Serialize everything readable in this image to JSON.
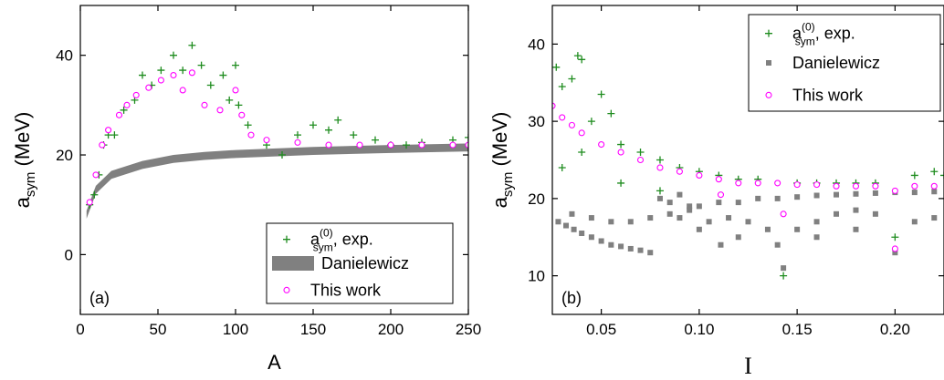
{
  "colors": {
    "exp": "#1e8c1e",
    "danielewicz": "#808080",
    "this_work": "#ff00ff",
    "axis": "#000000"
  },
  "chart_data": [
    {
      "type": "scatter",
      "panel_label": "(a)",
      "xlabel": "A",
      "ylabel_main": "a",
      "ylabel_sub": "sym",
      "ylabel_unit": " (MeV)",
      "xlim": [
        0,
        250
      ],
      "ylim": [
        -12,
        50
      ],
      "xticks": [
        0,
        50,
        100,
        150,
        200,
        250
      ],
      "xtick_labels": [
        "0",
        "50",
        "100",
        "150",
        "200",
        "250"
      ],
      "yticks": [
        0,
        20,
        40
      ],
      "ytick_labels": [
        "0",
        "20",
        "40"
      ],
      "legend": {
        "position": "lower-right",
        "entries": [
          {
            "key": "exp",
            "label_main": "a",
            "label_sub": "sym",
            "label_sup": "(0)",
            "label_rest": ", exp."
          },
          {
            "key": "danielewicz",
            "label": "Danielewicz"
          },
          {
            "key": "this_work",
            "label": "This work"
          }
        ]
      },
      "series": [
        {
          "key": "exp",
          "marker": "plus",
          "points": [
            [
              6,
              10
            ],
            [
              9,
              12
            ],
            [
              12,
              16
            ],
            [
              15,
              22
            ],
            [
              18,
              24
            ],
            [
              22,
              24
            ],
            [
              28,
              29
            ],
            [
              35,
              31
            ],
            [
              40,
              36
            ],
            [
              46,
              34
            ],
            [
              52,
              37
            ],
            [
              60,
              40
            ],
            [
              66,
              37
            ],
            [
              72,
              42
            ],
            [
              78,
              38
            ],
            [
              84,
              34
            ],
            [
              92,
              36
            ],
            [
              96,
              31
            ],
            [
              100,
              38
            ],
            [
              102,
              30
            ],
            [
              108,
              26
            ],
            [
              120,
              22
            ],
            [
              130,
              20
            ],
            [
              140,
              24
            ],
            [
              150,
              26
            ],
            [
              160,
              25
            ],
            [
              166,
              27
            ],
            [
              176,
              24
            ],
            [
              190,
              23
            ],
            [
              200,
              22
            ],
            [
              210,
              22
            ],
            [
              220,
              22.5
            ],
            [
              240,
              23
            ],
            [
              250,
              23.5
            ]
          ]
        },
        {
          "key": "this_work",
          "marker": "circle",
          "points": [
            [
              6,
              10.5
            ],
            [
              10,
              16
            ],
            [
              14,
              22
            ],
            [
              18,
              25
            ],
            [
              25,
              28
            ],
            [
              30,
              30
            ],
            [
              36,
              32
            ],
            [
              44,
              33.5
            ],
            [
              52,
              35
            ],
            [
              60,
              36
            ],
            [
              66,
              33
            ],
            [
              72,
              36.5
            ],
            [
              80,
              30
            ],
            [
              90,
              29
            ],
            [
              100,
              33
            ],
            [
              104,
              28
            ],
            [
              110,
              24
            ],
            [
              120,
              23
            ],
            [
              140,
              22.5
            ],
            [
              160,
              22
            ],
            [
              180,
              22
            ],
            [
              200,
              22
            ],
            [
              220,
              22
            ],
            [
              240,
              22
            ],
            [
              250,
              22
            ]
          ]
        },
        {
          "key": "danielewicz",
          "marker": "band",
          "curve": [
            [
              4,
              8
            ],
            [
              10,
              13
            ],
            [
              20,
              16
            ],
            [
              40,
              18
            ],
            [
              60,
              19.2
            ],
            [
              80,
              19.8
            ],
            [
              100,
              20.2
            ],
            [
              150,
              20.8
            ],
            [
              200,
              21.2
            ],
            [
              250,
              21.5
            ]
          ]
        }
      ]
    },
    {
      "type": "scatter",
      "panel_label": "(b)",
      "xlabel": "I",
      "ylabel_main": "a",
      "ylabel_sub": "sym",
      "ylabel_unit": " (MeV)",
      "xlim": [
        0.025,
        0.225
      ],
      "ylim": [
        5,
        45
      ],
      "xticks": [
        0.05,
        0.1,
        0.15,
        0.2
      ],
      "xtick_labels": [
        "0.05",
        "0.10",
        "0.15",
        "0.20"
      ],
      "yticks": [
        10,
        20,
        30,
        40
      ],
      "ytick_labels": [
        "10",
        "20",
        "30",
        "40"
      ],
      "legend": {
        "position": "top-right",
        "entries": [
          {
            "key": "exp",
            "label_main": "a",
            "label_sub": "sym",
            "label_sup": "(0)",
            "label_rest": ", exp."
          },
          {
            "key": "danielewicz",
            "label": "Danielewicz"
          },
          {
            "key": "this_work",
            "label": "This work"
          }
        ]
      },
      "series": [
        {
          "key": "exp",
          "marker": "plus",
          "points": [
            [
              0.027,
              37
            ],
            [
              0.03,
              34.5
            ],
            [
              0.035,
              35.5
            ],
            [
              0.038,
              38.5
            ],
            [
              0.04,
              38
            ],
            [
              0.045,
              30
            ],
            [
              0.05,
              33.5
            ],
            [
              0.055,
              31
            ],
            [
              0.06,
              27
            ],
            [
              0.07,
              26
            ],
            [
              0.08,
              25
            ],
            [
              0.09,
              24
            ],
            [
              0.1,
              23.5
            ],
            [
              0.11,
              23
            ],
            [
              0.12,
              22.5
            ],
            [
              0.13,
              22.5
            ],
            [
              0.143,
              10
            ],
            [
              0.15,
              22
            ],
            [
              0.16,
              22
            ],
            [
              0.17,
              22
            ],
            [
              0.18,
              22
            ],
            [
              0.19,
              22
            ],
            [
              0.2,
              15
            ],
            [
              0.21,
              23
            ],
            [
              0.22,
              23.5
            ],
            [
              0.225,
              23
            ],
            [
              0.03,
              24
            ],
            [
              0.04,
              26
            ],
            [
              0.06,
              22
            ],
            [
              0.08,
              21
            ]
          ]
        },
        {
          "key": "this_work",
          "marker": "circle",
          "points": [
            [
              0.025,
              32
            ],
            [
              0.03,
              30.5
            ],
            [
              0.035,
              29.5
            ],
            [
              0.04,
              28.5
            ],
            [
              0.05,
              27
            ],
            [
              0.06,
              26
            ],
            [
              0.07,
              25
            ],
            [
              0.08,
              24
            ],
            [
              0.09,
              23.5
            ],
            [
              0.1,
              23
            ],
            [
              0.11,
              22.5
            ],
            [
              0.12,
              22
            ],
            [
              0.13,
              22
            ],
            [
              0.14,
              22
            ],
            [
              0.15,
              21.8
            ],
            [
              0.16,
              21.8
            ],
            [
              0.17,
              21.6
            ],
            [
              0.18,
              21.6
            ],
            [
              0.19,
              21.6
            ],
            [
              0.2,
              13.5
            ],
            [
              0.21,
              21.6
            ],
            [
              0.22,
              21.6
            ],
            [
              0.111,
              20.5
            ],
            [
              0.143,
              18
            ],
            [
              0.2,
              21
            ]
          ]
        },
        {
          "key": "danielewicz",
          "marker": "square",
          "points": [
            [
              0.028,
              17
            ],
            [
              0.032,
              16.5
            ],
            [
              0.036,
              16
            ],
            [
              0.04,
              15.5
            ],
            [
              0.045,
              15
            ],
            [
              0.05,
              14.5
            ],
            [
              0.055,
              14
            ],
            [
              0.06,
              13.8
            ],
            [
              0.065,
              13.5
            ],
            [
              0.07,
              13.3
            ],
            [
              0.075,
              13
            ],
            [
              0.035,
              18
            ],
            [
              0.045,
              17.5
            ],
            [
              0.055,
              17
            ],
            [
              0.065,
              17
            ],
            [
              0.075,
              17.5
            ],
            [
              0.085,
              18
            ],
            [
              0.095,
              18.5
            ],
            [
              0.1,
              19
            ],
            [
              0.11,
              19.5
            ],
            [
              0.12,
              19.5
            ],
            [
              0.13,
              20
            ],
            [
              0.14,
              20
            ],
            [
              0.15,
              20.2
            ],
            [
              0.16,
              20.4
            ],
            [
              0.17,
              20.5
            ],
            [
              0.18,
              20.6
            ],
            [
              0.19,
              20.7
            ],
            [
              0.2,
              20.8
            ],
            [
              0.21,
              20.8
            ],
            [
              0.22,
              20.9
            ],
            [
              0.08,
              20
            ],
            [
              0.085,
              19.5
            ],
            [
              0.09,
              20.5
            ],
            [
              0.095,
              19
            ],
            [
              0.105,
              17
            ],
            [
              0.111,
              14
            ],
            [
              0.115,
              17.5
            ],
            [
              0.125,
              17
            ],
            [
              0.135,
              16
            ],
            [
              0.143,
              11
            ],
            [
              0.15,
              16
            ],
            [
              0.16,
              17
            ],
            [
              0.17,
              18
            ],
            [
              0.18,
              18.5
            ],
            [
              0.19,
              18
            ],
            [
              0.2,
              13
            ],
            [
              0.21,
              17
            ],
            [
              0.22,
              17.5
            ],
            [
              0.1,
              16
            ],
            [
              0.12,
              15
            ],
            [
              0.14,
              14
            ],
            [
              0.16,
              15
            ],
            [
              0.18,
              16
            ],
            [
              0.09,
              17.5
            ]
          ]
        }
      ]
    }
  ]
}
